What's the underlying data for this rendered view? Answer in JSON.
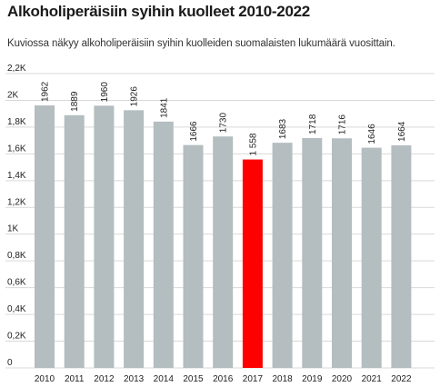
{
  "title": "Alkoholiperäisiin syihin kuolleet 2010-2022",
  "subtitle": "Kuviossa näkyy alkoholiperäisiin syihin kuolleiden suomalaisten lukumäärä vuosittain.",
  "colors": {
    "bar": "#b4bdbf",
    "highlight": "#ff0000",
    "grid": "#d9d9d9"
  },
  "chart_data": {
    "type": "bar",
    "title": "Alkoholiperäisiin syihin kuolleet 2010-2022",
    "xlabel": "",
    "ylabel": "",
    "categories": [
      "2010",
      "2011",
      "2012",
      "2013",
      "2014",
      "2015",
      "2016",
      "2017",
      "2018",
      "2019",
      "2020",
      "2021",
      "2022"
    ],
    "values": [
      1962,
      1889,
      1960,
      1926,
      1841,
      1666,
      1730,
      1558,
      1683,
      1718,
      1716,
      1646,
      1664
    ],
    "value_labels": [
      "1962",
      "1889",
      "1960",
      "1926",
      "1841",
      "1666",
      "1730",
      "1 558",
      "1683",
      "1718",
      "1716",
      "1646",
      "1664"
    ],
    "highlight_index": 7,
    "ylim": [
      0,
      2200
    ],
    "yticks": [
      0,
      200,
      400,
      600,
      800,
      1000,
      1200,
      1400,
      1600,
      1800,
      2000,
      2200
    ],
    "ytick_labels": [
      "0",
      "0,2K",
      "0,4K",
      "0,6K",
      "0,8K",
      "1K",
      "1,2K",
      "1,4K",
      "1,6K",
      "1,8K",
      "2K",
      "2,2K"
    ],
    "grid": true,
    "legend": "none"
  }
}
